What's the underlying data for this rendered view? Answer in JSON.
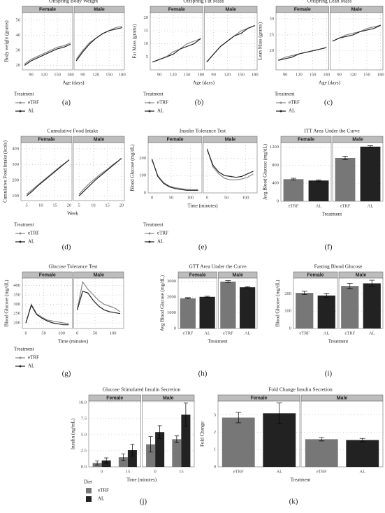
{
  "chart_data": [
    {
      "type": "line",
      "label": "(a)",
      "title": "Offspring Body Weight",
      "xlabel": "Age (days)",
      "ylabel": "Body weight (grams)",
      "xlim": [
        70,
        185
      ],
      "ylim": [
        17,
        55
      ],
      "xticks": [
        90,
        120,
        150,
        180
      ],
      "yticks": [
        20,
        30,
        40,
        50
      ],
      "legend_title": "Treatment",
      "facets": [
        {
          "name": "Female",
          "x": [
            75,
            90,
            105,
            120,
            135,
            150,
            165,
            180
          ],
          "series": [
            {
              "name": "eTRF",
              "color": "#888888",
              "values": [
                21,
                24,
                26,
                28,
                30,
                32,
                33,
                35
              ]
            },
            {
              "name": "AL",
              "color": "#222222",
              "values": [
                20,
                23,
                25,
                27,
                29,
                31,
                32,
                34
              ]
            }
          ]
        },
        {
          "name": "Male",
          "x": [
            75,
            90,
            105,
            120,
            135,
            150,
            165,
            180
          ],
          "series": [
            {
              "name": "eTRF",
              "color": "#888888",
              "values": [
                24,
                30,
                35,
                38,
                41,
                43,
                45,
                46
              ]
            },
            {
              "name": "AL",
              "color": "#222222",
              "values": [
                23,
                29,
                34,
                38,
                41,
                43,
                44,
                45
              ]
            }
          ]
        }
      ]
    },
    {
      "type": "line",
      "label": "(b)",
      "title": "Offspring Fat Mass",
      "xlabel": "Age (days)",
      "ylabel": "Fat Mass (grams)",
      "xlim": [
        70,
        185
      ],
      "ylim": [
        0,
        22
      ],
      "xticks": [
        90,
        120,
        150,
        180
      ],
      "yticks": [
        5,
        10,
        15,
        20
      ],
      "legend_title": "Treatment",
      "facets": [
        {
          "name": "Female",
          "x": [
            75,
            90,
            105,
            120,
            135,
            150,
            165,
            180
          ],
          "series": [
            {
              "name": "eTRF",
              "color": "#888888",
              "values": [
                3,
                4,
                5,
                7,
                8,
                10,
                11,
                12
              ]
            },
            {
              "name": "AL",
              "color": "#222222",
              "values": [
                3,
                4,
                5,
                6,
                8,
                9,
                10,
                12
              ]
            }
          ]
        },
        {
          "name": "Male",
          "x": [
            75,
            90,
            105,
            120,
            135,
            150,
            165,
            180
          ],
          "series": [
            {
              "name": "eTRF",
              "color": "#888888",
              "values": [
                3,
                6,
                9,
                11,
                13,
                15,
                16,
                17
              ]
            },
            {
              "name": "AL",
              "color": "#222222",
              "values": [
                3,
                6,
                9,
                11,
                13,
                14,
                16,
                17
              ]
            }
          ]
        }
      ]
    },
    {
      "type": "line",
      "label": "(c)",
      "title": "Offspring Lean Mass",
      "xlabel": "Age (days)",
      "ylabel": "Lean Mass (grams)",
      "xlim": [
        70,
        185
      ],
      "ylim": [
        14,
        32
      ],
      "xticks": [
        90,
        120,
        150,
        180
      ],
      "yticks": [
        20,
        25,
        30
      ],
      "legend_title": "Treatment",
      "facets": [
        {
          "name": "Female",
          "x": [
            75,
            90,
            105,
            120,
            135,
            150,
            165,
            180
          ],
          "series": [
            {
              "name": "eTRF",
              "color": "#888888",
              "values": [
                17,
                18,
                18.5,
                19,
                19.5,
                20,
                20.5,
                21
              ]
            },
            {
              "name": "AL",
              "color": "#222222",
              "values": [
                17,
                17.5,
                18,
                19,
                19.5,
                20,
                20.5,
                21
              ]
            }
          ]
        },
        {
          "name": "Male",
          "x": [
            75,
            90,
            105,
            120,
            135,
            150,
            165,
            180
          ],
          "series": [
            {
              "name": "eTRF",
              "color": "#888888",
              "values": [
                23,
                24,
                25,
                25.5,
                26,
                27,
                27.5,
                28
              ]
            },
            {
              "name": "AL",
              "color": "#222222",
              "values": [
                23,
                24,
                24.5,
                25,
                26,
                26.5,
                27,
                28
              ]
            }
          ]
        }
      ]
    },
    {
      "type": "line",
      "label": "(d)",
      "title": "Cumulative Food Intake",
      "xlabel": "Week",
      "ylabel": "Cumulative Food Intake (kcals)",
      "xlim": [
        3,
        21
      ],
      "ylim": [
        70,
        440
      ],
      "xticks": [
        5,
        10,
        15,
        20
      ],
      "yticks": [
        100,
        200,
        300,
        400
      ],
      "legend_title": "Treatment",
      "facets": [
        {
          "name": "Female",
          "x": [
            5,
            7,
            9,
            11,
            13,
            15,
            17,
            19,
            20
          ],
          "series": [
            {
              "name": "eTRF",
              "color": "#888888",
              "values": [
                110,
                140,
                170,
                200,
                230,
                260,
                290,
                315,
                330
              ]
            },
            {
              "name": "AL",
              "color": "#222222",
              "values": [
                100,
                130,
                165,
                195,
                225,
                255,
                285,
                315,
                330
              ]
            }
          ]
        },
        {
          "name": "Male",
          "x": [
            5,
            7,
            9,
            11,
            13,
            15,
            17,
            19,
            20
          ],
          "series": [
            {
              "name": "eTRF",
              "color": "#888888",
              "values": [
                110,
                150,
                185,
                215,
                245,
                270,
                300,
                325,
                340
              ]
            },
            {
              "name": "AL",
              "color": "#222222",
              "values": [
                100,
                135,
                170,
                205,
                235,
                265,
                295,
                325,
                340
              ]
            }
          ]
        }
      ]
    },
    {
      "type": "line",
      "label": "(e)",
      "title": "Insulin Tolerance Test",
      "xlabel": "Time (minutes)",
      "ylabel": "Blood Glucose (mg/dL)",
      "xlim": [
        -10,
        130
      ],
      "ylim": [
        0,
        290
      ],
      "xticks": [
        0,
        50,
        100
      ],
      "yticks": [
        0,
        100,
        200
      ],
      "legend_title": "Treatment",
      "facets": [
        {
          "name": "Female",
          "x": [
            0,
            15,
            30,
            45,
            60,
            75,
            90,
            105,
            120
          ],
          "series": [
            {
              "name": "eTRF",
              "color": "#888888",
              "values": [
                190,
                100,
                60,
                40,
                30,
                25,
                20,
                18,
                18
              ]
            },
            {
              "name": "AL",
              "color": "#222222",
              "values": [
                195,
                95,
                55,
                35,
                25,
                20,
                15,
                15,
                15
              ]
            }
          ]
        },
        {
          "name": "Male",
          "x": [
            0,
            15,
            30,
            45,
            60,
            75,
            90,
            105,
            120
          ],
          "series": [
            {
              "name": "eTRF",
              "color": "#888888",
              "values": [
                255,
                150,
                110,
                85,
                75,
                75,
                80,
                90,
                110
              ]
            },
            {
              "name": "AL",
              "color": "#222222",
              "values": [
                250,
                160,
                120,
                100,
                95,
                90,
                95,
                110,
                125
              ]
            }
          ]
        }
      ]
    },
    {
      "type": "bar",
      "label": "(f)",
      "title": "ITT Area Under the Curve",
      "xlabel": "Treatment",
      "ylabel": "Avg Blood Glucose (mg/dL)",
      "ylim": [
        0,
        1300
      ],
      "yticks": [
        0,
        400,
        800,
        1200
      ],
      "facets": [
        {
          "name": "Female",
          "categories": [
            "eTRF",
            "AL"
          ],
          "values": [
            490,
            460
          ],
          "errors": [
            20,
            15
          ],
          "colors": [
            "#777777",
            "#222222"
          ]
        },
        {
          "name": "Male",
          "categories": [
            "eTRF",
            "AL"
          ],
          "values": [
            960,
            1210
          ],
          "errors": [
            40,
            20
          ],
          "colors": [
            "#777777",
            "#222222"
          ]
        }
      ]
    },
    {
      "type": "line",
      "label": "(g)",
      "title": "Glucose Tolerance Test",
      "xlabel": "Time (minutes)",
      "ylabel": "Blood Glucose (mg/dL)",
      "xlim": [
        -10,
        130
      ],
      "ylim": [
        170,
        440
      ],
      "xticks": [
        0,
        50,
        100
      ],
      "yticks": [
        200,
        250,
        300,
        350,
        400
      ],
      "legend_title": "Treatment",
      "facets": [
        {
          "name": "Female",
          "x": [
            0,
            15,
            30,
            45,
            60,
            75,
            90,
            105,
            120
          ],
          "series": [
            {
              "name": "eTRF",
              "color": "#888888",
              "values": [
                200,
                300,
                250,
                230,
                215,
                210,
                205,
                200,
                195
              ]
            },
            {
              "name": "AL",
              "color": "#222222",
              "values": [
                200,
                295,
                245,
                225,
                210,
                200,
                195,
                190,
                190
              ]
            }
          ]
        },
        {
          "name": "Male",
          "x": [
            0,
            15,
            30,
            45,
            60,
            75,
            90,
            105,
            120
          ],
          "series": [
            {
              "name": "eTRF",
              "color": "#888888",
              "values": [
                270,
                420,
                380,
                350,
                320,
                300,
                290,
                280,
                260
              ]
            },
            {
              "name": "AL",
              "color": "#222222",
              "values": [
                270,
                370,
                360,
                320,
                290,
                270,
                260,
                255,
                250
              ]
            }
          ]
        }
      ]
    },
    {
      "type": "bar",
      "label": "(h)",
      "title": "GTT Area Under the Curve",
      "xlabel": "Treatment",
      "ylabel": "Avg Blood Glucose (mg/dL)",
      "ylim": [
        0,
        3200
      ],
      "yticks": [
        0,
        1000,
        2000,
        3000
      ],
      "facets": [
        {
          "name": "Female",
          "categories": [
            "eTRF",
            "AL"
          ],
          "values": [
            1920,
            2010
          ],
          "errors": [
            40,
            40
          ],
          "colors": [
            "#777777",
            "#222222"
          ]
        },
        {
          "name": "Male",
          "categories": [
            "eTRF",
            "AL"
          ],
          "values": [
            2980,
            2620
          ],
          "errors": [
            60,
            40
          ],
          "colors": [
            "#777777",
            "#222222"
          ]
        }
      ]
    },
    {
      "type": "bar",
      "label": "(i)",
      "title": "Fasting Blood Glucose",
      "xlabel": "Treatment",
      "ylabel": "Blood Glucose (mg/dL)",
      "ylim": [
        0,
        290
      ],
      "yticks": [
        0,
        100,
        200
      ],
      "facets": [
        {
          "name": "Female",
          "categories": [
            "eTRF",
            "AL"
          ],
          "values": [
            205,
            190
          ],
          "errors": [
            10,
            12
          ],
          "colors": [
            "#777777",
            "#222222"
          ]
        },
        {
          "name": "Male",
          "categories": [
            "eTRF",
            "AL"
          ],
          "values": [
            245,
            260
          ],
          "errors": [
            15,
            18
          ],
          "colors": [
            "#777777",
            "#222222"
          ]
        }
      ]
    },
    {
      "type": "grouped-bar",
      "label": "(j)",
      "title": "Glucose Stimulated Insulin Secretion",
      "xlabel": "Time (minutes)",
      "ylabel": "Insulin (ng/mL)",
      "ylim": [
        0,
        10.2
      ],
      "yticks": [
        {
          "value": 0,
          "label": "0.0"
        },
        2.5,
        {
          "value": 5,
          "label": "5.0"
        },
        7.5,
        {
          "value": 10,
          "label": "10.0"
        }
      ],
      "legend_title": "Diet",
      "facets": [
        {
          "name": "Female",
          "categories": [
            "0",
            "15"
          ],
          "series": [
            {
              "name": "eTRF",
              "color": "#777777",
              "values": [
                0.6,
                1.5
              ],
              "errors": [
                0.3,
                0.5
              ]
            },
            {
              "name": "AL",
              "color": "#222222",
              "values": [
                1.0,
                2.6
              ],
              "errors": [
                0.4,
                0.9
              ]
            }
          ]
        },
        {
          "name": "Male",
          "categories": [
            "0",
            "15"
          ],
          "series": [
            {
              "name": "eTRF",
              "color": "#777777",
              "values": [
                3.5,
                4.3
              ],
              "errors": [
                1.2,
                0.5
              ]
            },
            {
              "name": "AL",
              "color": "#222222",
              "values": [
                5.4,
                8.1
              ],
              "errors": [
                1.0,
                1.8
              ]
            }
          ]
        }
      ]
    },
    {
      "type": "bar",
      "label": "(k)",
      "title": "Fold Change Insulin Secretion",
      "xlabel": "Treatment",
      "ylabel": "Fold Change",
      "ylim": [
        0,
        3.8
      ],
      "yticks": [
        0,
        1,
        2,
        3
      ],
      "facets": [
        {
          "name": "Female",
          "categories": [
            "eTRF",
            "AL"
          ],
          "values": [
            2.85,
            3.1
          ],
          "errors": [
            0.3,
            0.6
          ],
          "colors": [
            "#777777",
            "#222222"
          ]
        },
        {
          "name": "Male",
          "categories": [
            "eTRF",
            "AL"
          ],
          "values": [
            1.6,
            1.55
          ],
          "errors": [
            0.1,
            0.1
          ],
          "colors": [
            "#777777",
            "#222222"
          ]
        }
      ]
    }
  ]
}
